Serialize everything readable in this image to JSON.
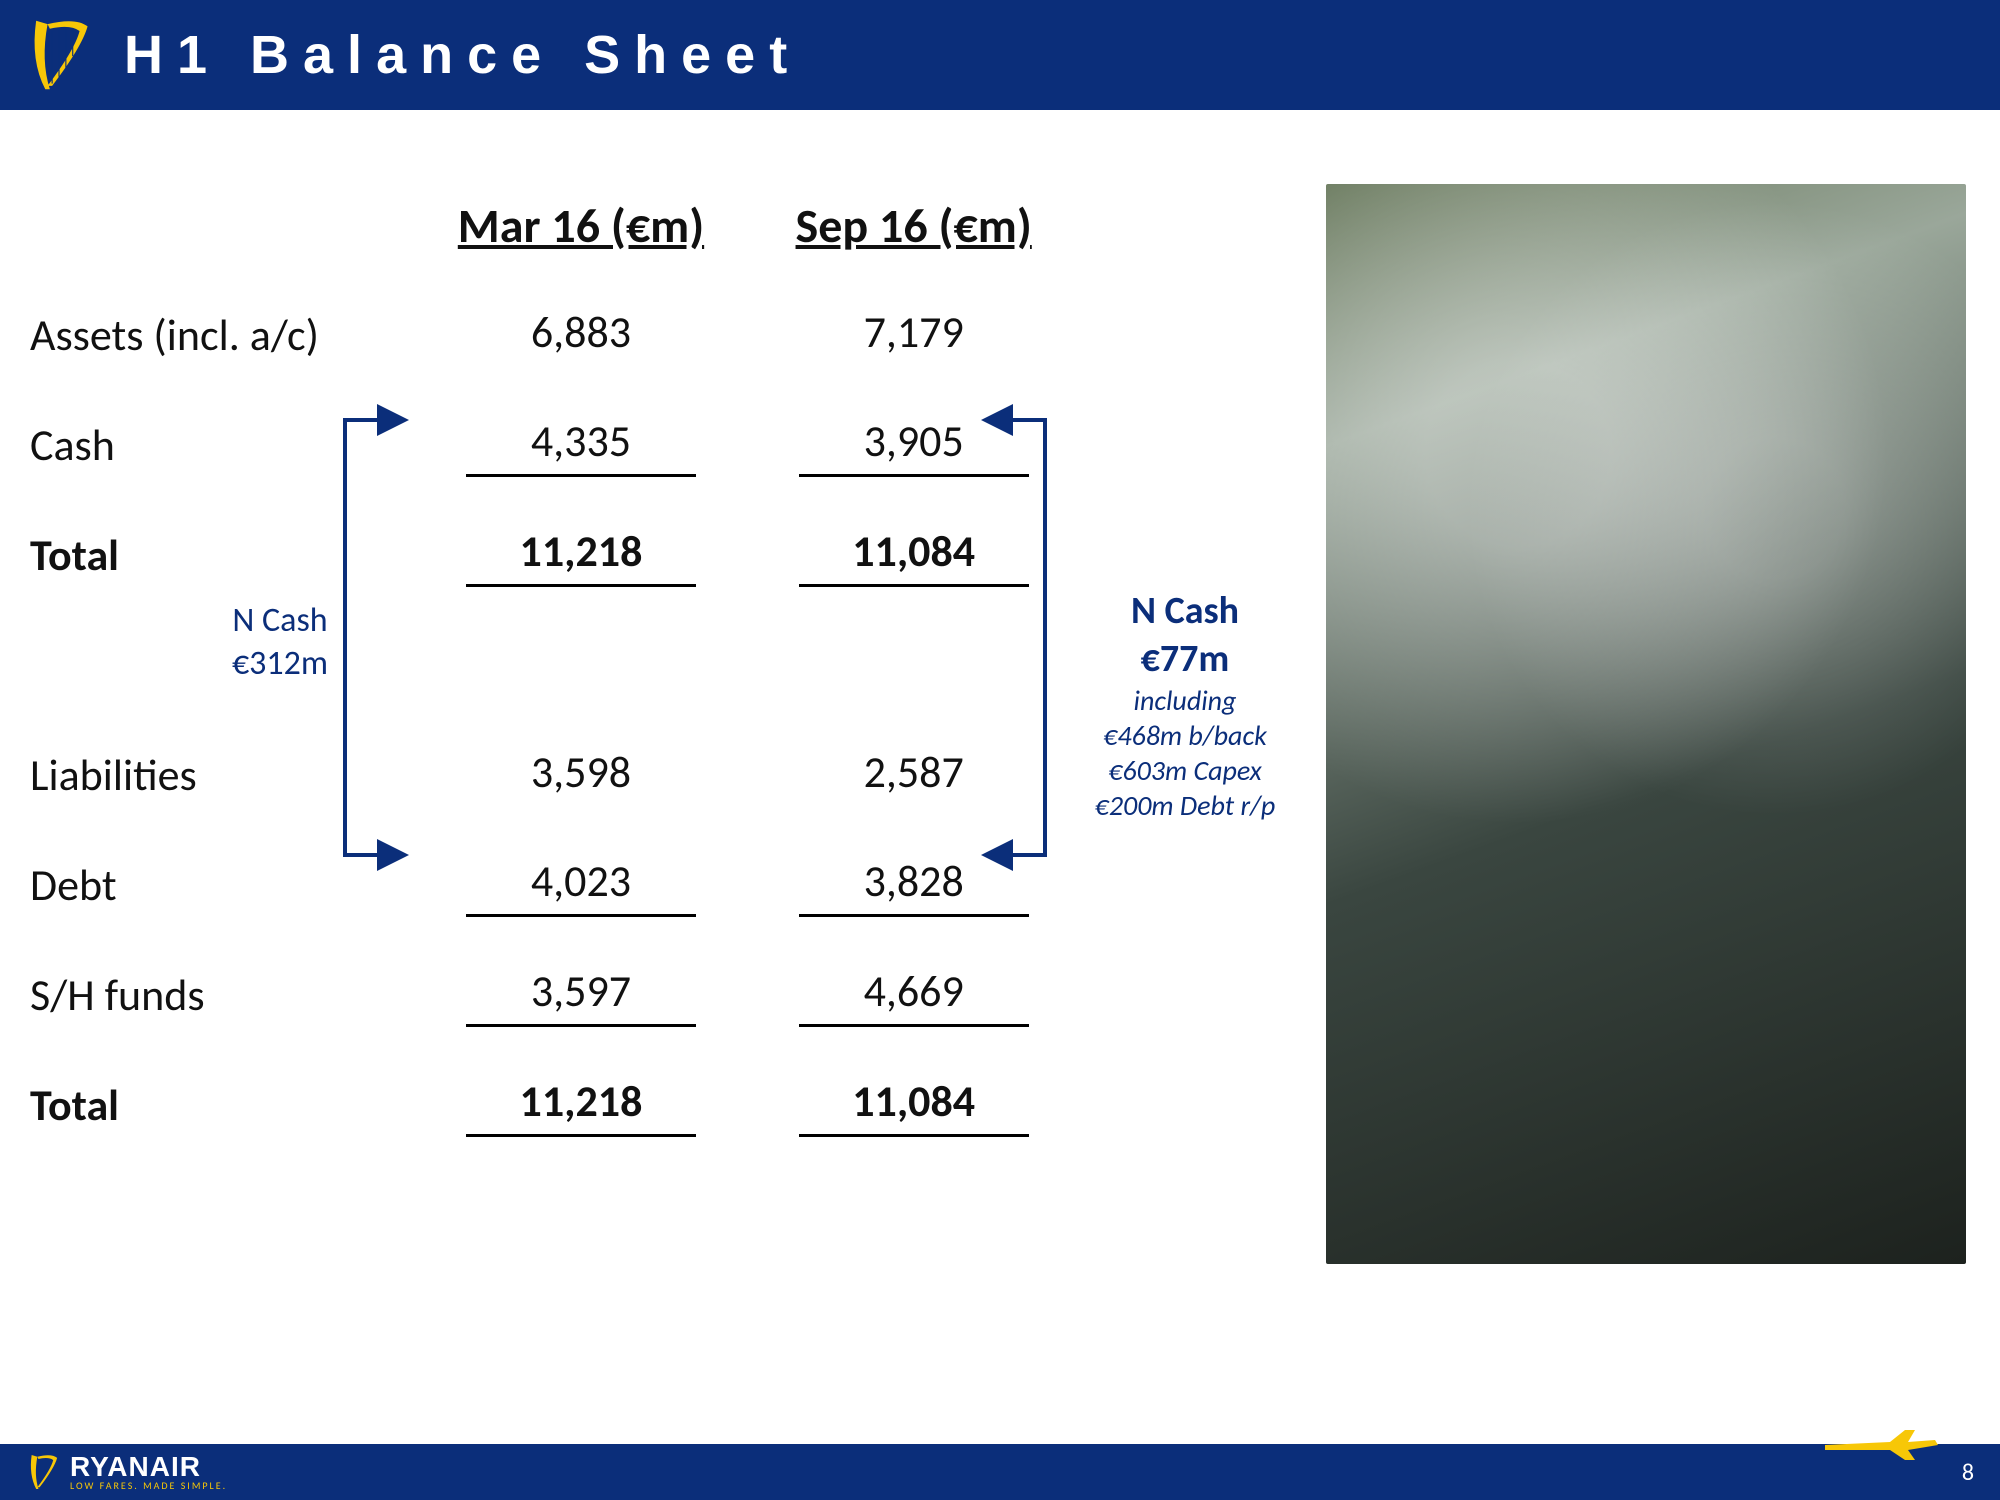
{
  "header": {
    "title": "H1 Balance Sheet",
    "brand_color": "#0b2e7a",
    "accent_color": "#f7c707"
  },
  "footer": {
    "brand": "RYANAIR",
    "tagline": "LOW FARES. MADE SIMPLE.",
    "page_number": "8"
  },
  "table": {
    "columns": [
      "Mar 16 (€m)",
      "Sep 16 (€m)"
    ],
    "rows": [
      {
        "label": "Assets (incl. a/c)",
        "mar": "6,883",
        "sep": "7,179",
        "bold": false,
        "underline": false
      },
      {
        "label": "Cash",
        "mar": "4,335",
        "sep": "3,905",
        "bold": false,
        "underline": true
      },
      {
        "label": "Total",
        "mar": "11,218",
        "sep": "11,084",
        "bold": true,
        "underline": true
      },
      {
        "gap": true
      },
      {
        "label": "Liabilities",
        "mar": "3,598",
        "sep": "2,587",
        "bold": false,
        "underline": false
      },
      {
        "label": "Debt",
        "mar": "4,023",
        "sep": "3,828",
        "bold": false,
        "underline": true
      },
      {
        "label": "S/H funds",
        "mar": "3,597",
        "sep": "4,669",
        "bold": false,
        "underline": true
      },
      {
        "label": "Total",
        "mar": "11,218",
        "sep": "11,084",
        "bold": true,
        "underline": true
      }
    ]
  },
  "callouts": {
    "left": {
      "line1": "N Cash",
      "line2": "€312m"
    },
    "right": {
      "line1": "N Cash",
      "line2": "€77m",
      "line3": "including",
      "line4": "€468m b/back",
      "line5": "€603m Capex",
      "line6": "€200m Debt r/p"
    }
  },
  "arrows": {
    "stroke": "#0b2e7a",
    "stroke_width": 4
  }
}
